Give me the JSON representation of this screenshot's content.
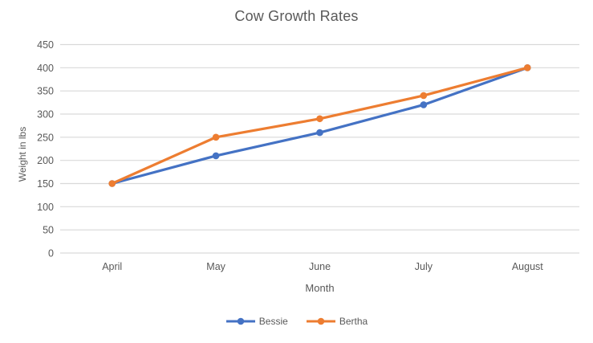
{
  "chart_data": {
    "type": "line",
    "title": "Cow Growth Rates",
    "xlabel": "Month",
    "ylabel": "Weight in lbs",
    "categories": [
      "April",
      "May",
      "June",
      "July",
      "August"
    ],
    "series": [
      {
        "name": "Bessie",
        "color": "#4472C4",
        "values": [
          150,
          210,
          260,
          320,
          400
        ]
      },
      {
        "name": "Bertha",
        "color": "#ED7D31",
        "values": [
          150,
          250,
          290,
          340,
          400
        ]
      }
    ],
    "ylim": [
      0,
      450
    ],
    "ytick_step": 50,
    "grid": "horizontal",
    "legend_position": "bottom-center",
    "colors": {
      "gridline": "#D9D9D9",
      "text": "#595959",
      "background": "#FFFFFF"
    }
  }
}
